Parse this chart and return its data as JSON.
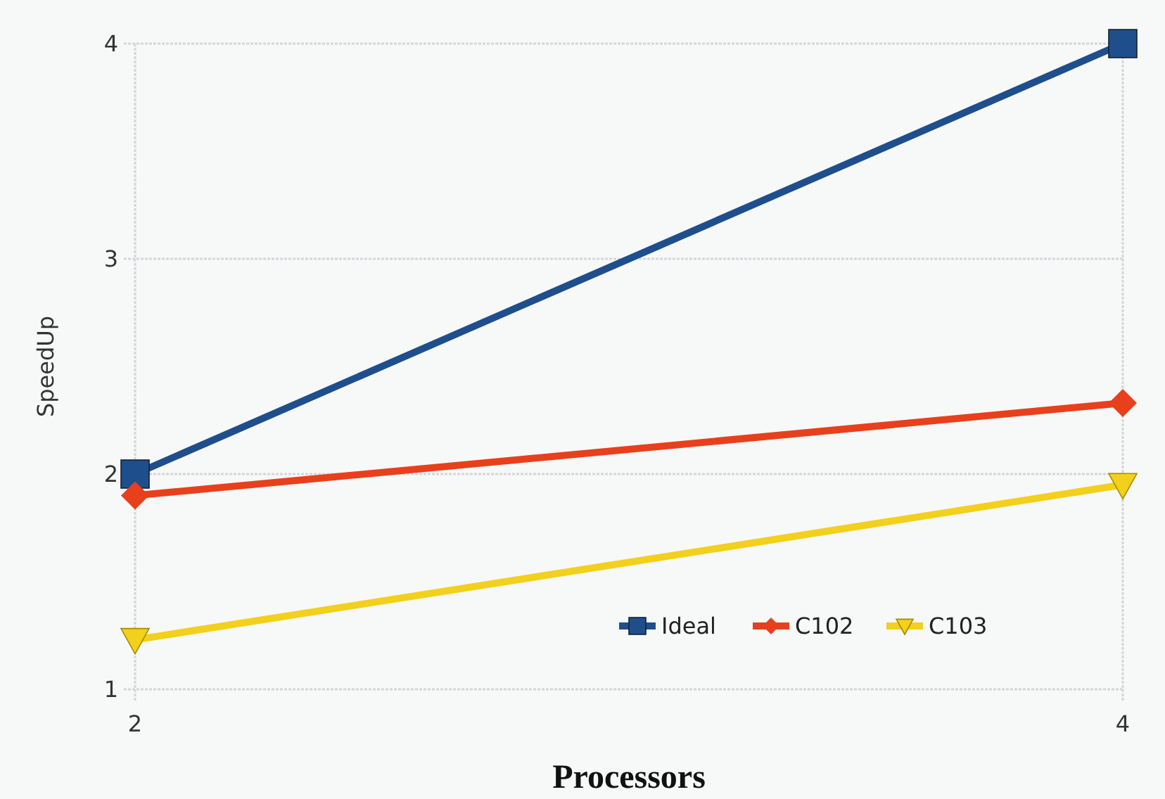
{
  "chart_data": {
    "type": "line",
    "xlabel": "Processors",
    "ylabel": "SpeedUp",
    "x": [
      2,
      4
    ],
    "xlim": [
      2,
      4
    ],
    "xticks": [
      2,
      4
    ],
    "ylim": [
      1,
      4
    ],
    "yticks": [
      1,
      2,
      3,
      4
    ],
    "grid": true,
    "legend": "bottom right",
    "series": [
      {
        "name": "Ideal",
        "color": "#1f4e8c",
        "marker": "square",
        "values": [
          2,
          4
        ]
      },
      {
        "name": "C102",
        "color": "#e8401c",
        "marker": "diamond",
        "values": [
          1.9,
          2.33
        ]
      },
      {
        "name": "C103",
        "color": "#f2d01c",
        "marker": "triangle",
        "values": [
          1.23,
          1.95
        ]
      }
    ]
  }
}
